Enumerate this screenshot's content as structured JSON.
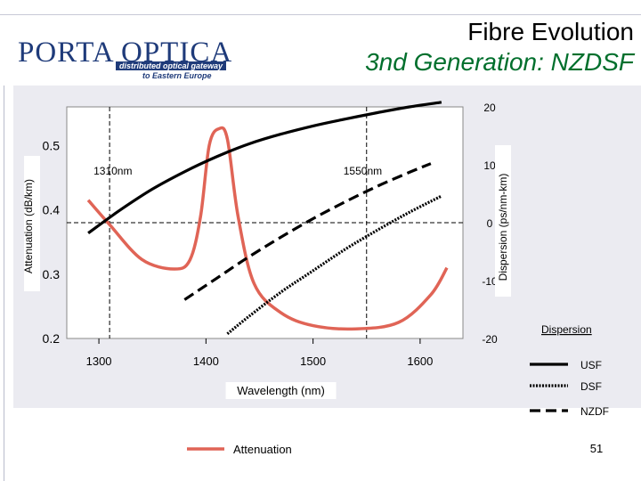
{
  "header": {
    "title": "Fibre Evolution",
    "subtitle": "3nd Generation: NZDSF"
  },
  "logo": {
    "name": "PORTA OPTICA",
    "tagline1": "distributed optical gateway",
    "tagline2": "to Eastern Europe"
  },
  "page_number": "51",
  "colors": {
    "attenuation": "#e06456",
    "fibres": "#000000",
    "subtitle": "#006f2c",
    "logo": "#1f3b7a"
  },
  "chart_data": {
    "type": "line",
    "xlabel": "Wavelength (nm)",
    "ylabel_left": "Attenuation (dB/km)",
    "ylabel_right": "Dispersion (ps/nm-km)",
    "xlim": [
      1270,
      1640
    ],
    "ylim_left": [
      0.2,
      0.56
    ],
    "ylim_right": [
      -20,
      20
    ],
    "x_ticks": [
      "1300",
      "1400",
      "1500",
      "1600"
    ],
    "x_tick_values": [
      1300,
      1400,
      1500,
      1600
    ],
    "y_left_ticks": [
      "0.2",
      "0.3",
      "0.4",
      "0.5"
    ],
    "y_left_tick_values": [
      0.2,
      0.3,
      0.4,
      0.5
    ],
    "y_right_ticks": [
      "-20",
      "-10",
      "0",
      "10",
      "20"
    ],
    "y_right_tick_values": [
      -20,
      -10,
      0,
      10,
      20
    ],
    "grid": false,
    "reference_lines": [
      {
        "axis": "x",
        "value": 1310,
        "label": "1310nm"
      },
      {
        "axis": "x",
        "value": 1550,
        "label": "1550nm"
      },
      {
        "axis": "y_right",
        "value": 0
      }
    ],
    "attenuation_legend": "Attenuation",
    "dispersion_legend_title": "Dispersion",
    "series": [
      {
        "name": "Attenuation",
        "axis": "left",
        "style": "solid-thick",
        "color": "#e06456",
        "x": [
          1290,
          1310,
          1340,
          1370,
          1385,
          1395,
          1403,
          1412,
          1420,
          1430,
          1445,
          1470,
          1500,
          1540,
          1580,
          1610,
          1625
        ],
        "y": [
          0.415,
          0.377,
          0.323,
          0.308,
          0.322,
          0.39,
          0.5,
          0.526,
          0.51,
          0.39,
          0.285,
          0.24,
          0.22,
          0.215,
          0.225,
          0.268,
          0.31
        ]
      },
      {
        "name": "USF",
        "axis": "right",
        "style": "solid",
        "color": "#000000",
        "x": [
          1290,
          1320,
          1350,
          1380,
          1410,
          1440,
          1470,
          1500,
          1530,
          1560,
          1590,
          1620
        ],
        "y": [
          -1.8,
          2.2,
          5.8,
          8.8,
          11.4,
          13.6,
          15.3,
          16.7,
          17.9,
          19,
          20,
          20.8
        ]
      },
      {
        "name": "DSF",
        "axis": "right",
        "style": "dotted",
        "color": "#000000",
        "x": [
          1420,
          1440,
          1470,
          1500,
          1530,
          1560,
          1590,
          1620
        ],
        "y": [
          -19.2,
          -16.2,
          -12,
          -8.3,
          -4.6,
          -1.3,
          1.8,
          4.6
        ]
      },
      {
        "name": "NZDF",
        "axis": "right",
        "style": "dashed",
        "color": "#000000",
        "x": [
          1380,
          1410,
          1440,
          1470,
          1500,
          1530,
          1560,
          1590,
          1610
        ],
        "y": [
          -13.3,
          -9.6,
          -5.9,
          -2.5,
          0.7,
          3.6,
          6.3,
          8.7,
          10.2
        ]
      }
    ]
  }
}
